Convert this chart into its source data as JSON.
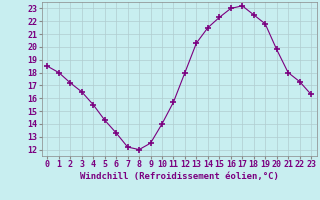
{
  "x": [
    0,
    1,
    2,
    3,
    4,
    5,
    6,
    7,
    8,
    9,
    10,
    11,
    12,
    13,
    14,
    15,
    16,
    17,
    18,
    19,
    20,
    21,
    22,
    23
  ],
  "y": [
    18.5,
    18.0,
    17.2,
    16.5,
    15.5,
    14.3,
    13.3,
    12.2,
    12.0,
    12.5,
    14.0,
    15.7,
    18.0,
    20.3,
    21.5,
    22.3,
    23.0,
    23.2,
    22.5,
    21.8,
    19.8,
    18.0,
    17.3,
    16.3
  ],
  "line_color": "#7b0080",
  "marker": "+",
  "marker_size": 4,
  "bg_color": "#c8eef0",
  "grid_color": "#b0ccd0",
  "xlabel": "Windchill (Refroidissement éolien,°C)",
  "xlabel_fontsize": 6.5,
  "tick_fontsize": 6.0,
  "ylim": [
    11.5,
    23.5
  ],
  "xlim": [
    -0.5,
    23.5
  ],
  "yticks": [
    12,
    13,
    14,
    15,
    16,
    17,
    18,
    19,
    20,
    21,
    22,
    23
  ],
  "xticks": [
    0,
    1,
    2,
    3,
    4,
    5,
    6,
    7,
    8,
    9,
    10,
    11,
    12,
    13,
    14,
    15,
    16,
    17,
    18,
    19,
    20,
    21,
    22,
    23
  ]
}
